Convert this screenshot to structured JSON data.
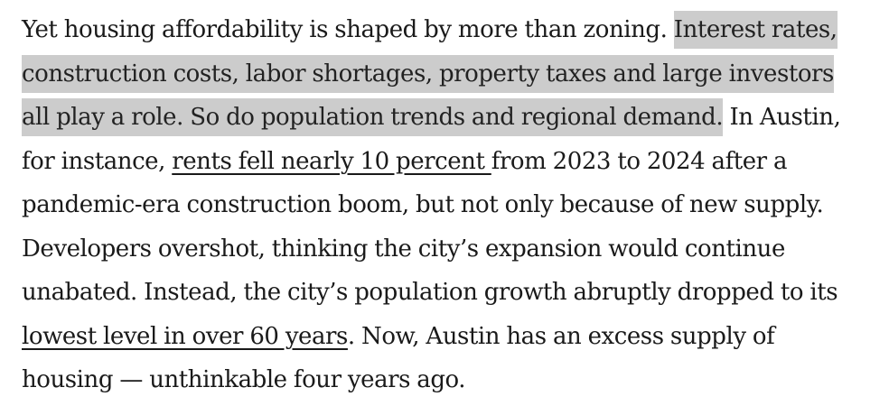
{
  "article": {
    "paragraph": {
      "l1_plain": "Yet housing affordability is shaped by more than zoning. ",
      "l1_highlight": "Interest rates,",
      "l2_highlight": "construction costs, labor shortages, property taxes and large investors",
      "l3_highlight": "all play a role. So do population trends and regional demand.",
      "l3_plain": " In Austin,",
      "l4_before": "for instance, ",
      "link_rents": "rents fell nearly 10 percent ",
      "l4_after": "from 2023 to 2024 after a",
      "l5": "pandemic-era construction boom, but not only because of new supply.",
      "l6": "Developers overshot, thinking the city’s expansion would continue",
      "l7": "unabated. Instead, the city’s population growth abruptly dropped to its",
      "link_lowest": "lowest level in over 60 years",
      "l8_after": ". Now, Austin has an excess supply of",
      "l9": "housing — unthinkable four years ago."
    },
    "highlight_color": "#cccccc",
    "text_color": "#1a1a1a"
  }
}
